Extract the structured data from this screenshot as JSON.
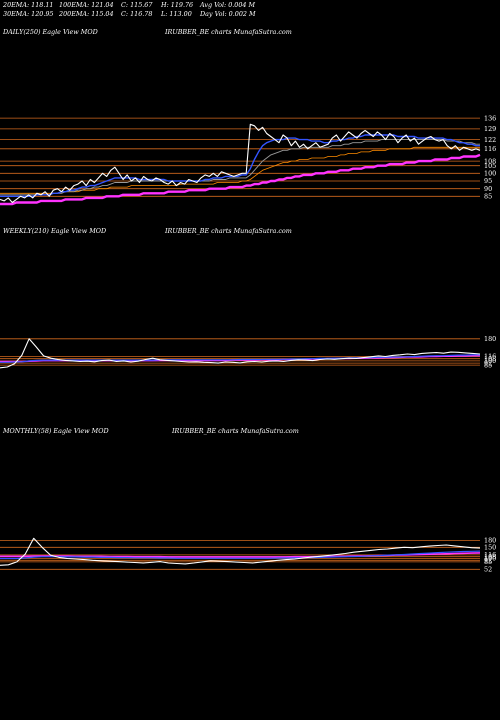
{
  "header": {
    "row1": [
      "20EMA: 118.11",
      "100EMA: 121.04",
      "C: 115.67",
      "H: 119.76",
      "Avg Vol: 0.004  M"
    ],
    "row2": [
      "30EMA: 120.95",
      "200EMA: 115.04",
      "C: 116.78",
      "L: 113.00",
      "Day Vol: 0.002  M"
    ]
  },
  "panels": [
    {
      "left": "DAILY(250) Eagle   View  MOD",
      "right": "IRUBBER_BE charts MunafaSutra.com"
    },
    {
      "left": "WEEKLY(210) Eagle   View  MOD",
      "right": "IRUBBER_BE charts MunafaSutra.com"
    },
    {
      "left": "MONTHLY(58) Eagle   View  MOD",
      "right": "IRUBBER_BE charts MunafaSutra.com"
    }
  ],
  "colors": {
    "background": "#000000",
    "price": "#ffffff",
    "grid": "#d2691e",
    "ema_blue": "#3355ff",
    "ema_gray": "#9a9a9a",
    "ema_magenta": "#ff33ff",
    "ema_orange": "#ff8c00"
  },
  "chart_data": [
    {
      "type": "line",
      "name": "daily",
      "ylim": [
        80,
        140
      ],
      "levels": [
        136,
        129,
        122,
        116,
        108,
        105,
        100,
        95,
        90,
        85
      ],
      "price": [
        83,
        82,
        84,
        81,
        83,
        85,
        84,
        86,
        84,
        87,
        86,
        88,
        85,
        89,
        90,
        88,
        91,
        89,
        92,
        93,
        95,
        92,
        96,
        94,
        97,
        100,
        98,
        102,
        104,
        100,
        96,
        99,
        95,
        97,
        94,
        98,
        96,
        95,
        97,
        96,
        94,
        93,
        95,
        92,
        94,
        93,
        96,
        95,
        94,
        97,
        99,
        98,
        100,
        98,
        101,
        100,
        99,
        98,
        99,
        100,
        100,
        132,
        131,
        128,
        130,
        126,
        124,
        122,
        120,
        125,
        123,
        118,
        121,
        117,
        119,
        116,
        118,
        120,
        117,
        118,
        119,
        123,
        125,
        121,
        124,
        127,
        125,
        123,
        126,
        128,
        126,
        124,
        127,
        125,
        122,
        126,
        124,
        120,
        123,
        125,
        121,
        123,
        119,
        121,
        123,
        124,
        122,
        121,
        122,
        118,
        116,
        118,
        115,
        117,
        116,
        115,
        116,
        115
      ],
      "ema_fast": [
        85,
        85,
        85,
        85,
        85,
        85,
        85,
        85,
        85,
        86,
        86,
        86,
        86,
        87,
        87,
        88,
        88,
        89,
        89,
        90,
        91,
        91,
        92,
        92,
        93,
        94,
        95,
        96,
        97,
        97,
        97,
        97,
        97,
        97,
        96,
        96,
        96,
        96,
        96,
        96,
        96,
        95,
        95,
        95,
        95,
        95,
        95,
        95,
        95,
        95,
        96,
        96,
        97,
        97,
        97,
        98,
        98,
        98,
        98,
        99,
        99,
        103,
        109,
        114,
        118,
        120,
        121,
        122,
        122,
        122,
        123,
        123,
        123,
        122,
        122,
        122,
        121,
        121,
        121,
        120,
        120,
        121,
        121,
        122,
        122,
        123,
        123,
        124,
        124,
        125,
        125,
        125,
        125,
        125,
        125,
        125,
        125,
        124,
        124,
        124,
        124,
        124,
        123,
        123,
        123,
        123,
        123,
        123,
        123,
        122,
        122,
        121,
        120,
        120,
        119,
        119,
        118,
        118
      ],
      "ema_mid": [
        86,
        86,
        86,
        86,
        86,
        86,
        86,
        86,
        86,
        86,
        86,
        86,
        86,
        87,
        87,
        87,
        88,
        88,
        88,
        89,
        89,
        90,
        90,
        91,
        91,
        92,
        92,
        93,
        94,
        94,
        94,
        94,
        95,
        95,
        95,
        95,
        95,
        95,
        95,
        95,
        95,
        95,
        95,
        95,
        95,
        95,
        95,
        95,
        95,
        95,
        95,
        95,
        96,
        96,
        96,
        96,
        97,
        97,
        97,
        97,
        97,
        99,
        102,
        105,
        108,
        110,
        112,
        113,
        114,
        115,
        115,
        116,
        116,
        116,
        117,
        117,
        117,
        117,
        117,
        117,
        117,
        118,
        118,
        118,
        119,
        119,
        120,
        120,
        120,
        121,
        121,
        121,
        121,
        122,
        122,
        122,
        122,
        122,
        122,
        122,
        122,
        122,
        122,
        122,
        122,
        122,
        122,
        122,
        122,
        121,
        121,
        121,
        121,
        120,
        120,
        120,
        119,
        119
      ],
      "ema_slow": [
        87,
        87,
        87,
        87,
        87,
        87,
        87,
        87,
        87,
        87,
        87,
        87,
        87,
        87,
        87,
        88,
        88,
        88,
        88,
        88,
        89,
        89,
        89,
        89,
        90,
        90,
        90,
        91,
        91,
        91,
        91,
        91,
        92,
        92,
        92,
        92,
        92,
        92,
        92,
        92,
        92,
        92,
        92,
        92,
        93,
        93,
        93,
        93,
        93,
        93,
        93,
        93,
        93,
        94,
        94,
        94,
        94,
        94,
        94,
        95,
        95,
        96,
        98,
        100,
        102,
        103,
        104,
        105,
        106,
        107,
        107,
        108,
        108,
        109,
        109,
        109,
        110,
        110,
        110,
        110,
        111,
        111,
        111,
        112,
        112,
        113,
        113,
        113,
        114,
        114,
        114,
        115,
        115,
        115,
        115,
        116,
        116,
        116,
        116,
        116,
        116,
        117,
        117,
        117,
        117,
        117,
        117,
        117,
        117,
        117,
        117,
        117,
        117,
        117,
        117,
        117,
        117,
        117
      ],
      "ema_long": [
        80,
        80,
        80,
        80,
        81,
        81,
        81,
        81,
        81,
        81,
        82,
        82,
        82,
        82,
        82,
        82,
        83,
        83,
        83,
        83,
        83,
        84,
        84,
        84,
        84,
        84,
        85,
        85,
        85,
        85,
        86,
        86,
        86,
        86,
        86,
        87,
        87,
        87,
        87,
        87,
        87,
        88,
        88,
        88,
        88,
        88,
        89,
        89,
        89,
        89,
        89,
        90,
        90,
        90,
        90,
        90,
        91,
        91,
        91,
        91,
        92,
        92,
        93,
        93,
        94,
        94,
        95,
        95,
        96,
        96,
        97,
        97,
        98,
        98,
        99,
        99,
        99,
        100,
        100,
        100,
        101,
        101,
        101,
        102,
        102,
        102,
        103,
        103,
        103,
        104,
        104,
        104,
        105,
        105,
        105,
        106,
        106,
        106,
        106,
        107,
        107,
        107,
        108,
        108,
        108,
        108,
        109,
        109,
        109,
        109,
        110,
        110,
        110,
        111,
        111,
        111,
        111,
        112
      ]
    },
    {
      "type": "line",
      "name": "weekly",
      "ylim": [
        60,
        190
      ],
      "levels": [
        180,
        116,
        108,
        100,
        92,
        85
      ],
      "price": [
        75,
        78,
        90,
        120,
        180,
        150,
        118,
        110,
        105,
        102,
        100,
        98,
        99,
        97,
        101,
        103,
        98,
        100,
        96,
        99,
        105,
        110,
        104,
        102,
        100,
        98,
        96,
        97,
        95,
        94,
        92,
        96,
        95,
        93,
        97,
        98,
        96,
        99,
        100,
        98,
        102,
        104,
        103,
        101,
        105,
        107,
        106,
        108,
        110,
        109,
        112,
        115,
        118,
        116,
        120,
        122,
        125,
        123,
        127,
        129,
        130,
        128,
        132,
        131,
        129,
        127,
        125
      ],
      "ema_a": [
        95,
        95,
        96,
        97,
        100,
        102,
        103,
        103,
        103,
        103,
        103,
        103,
        103,
        103,
        103,
        103,
        103,
        103,
        103,
        103,
        103,
        103,
        104,
        104,
        104,
        104,
        104,
        104,
        104,
        104,
        104,
        104,
        104,
        105,
        105,
        105,
        105,
        106,
        106,
        106,
        107,
        107,
        108,
        108,
        109,
        109,
        110,
        110,
        111,
        111,
        112,
        112,
        113,
        113,
        114,
        114,
        115,
        116,
        117,
        118,
        119,
        119,
        120,
        121,
        121,
        122,
        122
      ],
      "ema_b": [
        98,
        98,
        98,
        98,
        99,
        100,
        101,
        101,
        101,
        101,
        101,
        101,
        101,
        101,
        101,
        101,
        101,
        101,
        101,
        101,
        101,
        101,
        102,
        102,
        102,
        102,
        102,
        102,
        102,
        102,
        102,
        102,
        103,
        103,
        103,
        103,
        104,
        104,
        104,
        105,
        105,
        106,
        106,
        107,
        107,
        108,
        108,
        109,
        109,
        110,
        110,
        111,
        111,
        112,
        112,
        113,
        114,
        114,
        115,
        116,
        116,
        117,
        117,
        118,
        118,
        119,
        119
      ]
    },
    {
      "type": "line",
      "name": "monthly",
      "ylim": [
        40,
        200
      ],
      "levels": [
        180,
        150,
        116,
        108,
        100,
        92,
        85,
        52
      ],
      "price": [
        70,
        72,
        85,
        120,
        190,
        150,
        115,
        105,
        100,
        98,
        95,
        92,
        90,
        88,
        86,
        84,
        82,
        80,
        83,
        86,
        80,
        78,
        76,
        80,
        85,
        90,
        88,
        86,
        84,
        82,
        80,
        84,
        88,
        92,
        95,
        98,
        102,
        106,
        110,
        114,
        118,
        122,
        128,
        132,
        136,
        140,
        142,
        146,
        150,
        148,
        152,
        155,
        158,
        160,
        156,
        152,
        148,
        146
      ],
      "ema_a": [
        100,
        100,
        100,
        102,
        106,
        108,
        108,
        108,
        107,
        107,
        106,
        106,
        105,
        105,
        104,
        104,
        103,
        103,
        103,
        102,
        102,
        101,
        101,
        101,
        101,
        101,
        101,
        101,
        101,
        101,
        101,
        101,
        101,
        102,
        102,
        103,
        103,
        104,
        105,
        106,
        107,
        108,
        109,
        110,
        112,
        113,
        115,
        116,
        118,
        120,
        122,
        124,
        126,
        128,
        130,
        131,
        132,
        133
      ],
      "ema_b": [
        110,
        110,
        110,
        110,
        111,
        111,
        111,
        111,
        111,
        110,
        110,
        110,
        110,
        109,
        109,
        109,
        108,
        108,
        108,
        108,
        107,
        107,
        107,
        107,
        107,
        107,
        107,
        107,
        107,
        107,
        107,
        107,
        107,
        107,
        107,
        108,
        108,
        108,
        109,
        109,
        110,
        110,
        111,
        111,
        112,
        113,
        114,
        115,
        116,
        117,
        118,
        119,
        120,
        121,
        122,
        123,
        124,
        125
      ]
    }
  ]
}
